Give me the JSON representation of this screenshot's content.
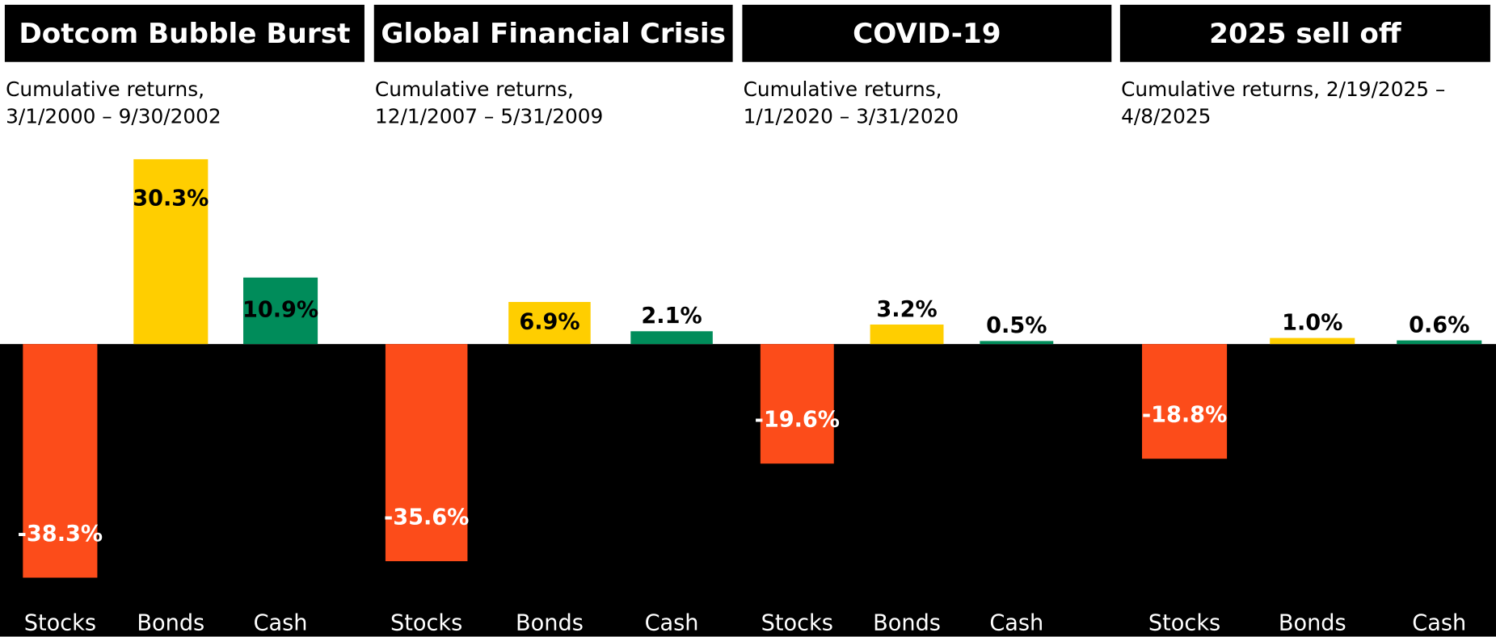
{
  "chart_data": [
    {
      "type": "bar",
      "title": "Dotcom Bubble Burst",
      "subtitle": "Cumulative returns, 3/1/2000 – 9/30/2002",
      "categories": [
        "Stocks",
        "Bonds",
        "Cash"
      ],
      "values": [
        -38.3,
        30.3,
        10.9
      ],
      "value_labels": [
        "-38.3%",
        "30.3%",
        "10.9%"
      ],
      "colors": [
        "#fc4c1a",
        "#ffce00",
        "#008c5a"
      ]
    },
    {
      "type": "bar",
      "title": "Global Financial Crisis",
      "subtitle": "Cumulative returns, 12/1/2007 – 5/31/2009",
      "categories": [
        "Stocks",
        "Bonds",
        "Cash"
      ],
      "values": [
        -35.6,
        6.9,
        2.1
      ],
      "value_labels": [
        "-35.6%",
        "6.9%",
        "2.1%"
      ],
      "colors": [
        "#fc4c1a",
        "#ffce00",
        "#008c5a"
      ]
    },
    {
      "type": "bar",
      "title": "COVID-19",
      "subtitle": "Cumulative returns, 1/1/2020 – 3/31/2020",
      "categories": [
        "Stocks",
        "Bonds",
        "Cash"
      ],
      "values": [
        -19.6,
        3.2,
        0.5
      ],
      "value_labels": [
        "-19.6%",
        "3.2%",
        "0.5%"
      ],
      "colors": [
        "#fc4c1a",
        "#ffce00",
        "#008c5a"
      ]
    },
    {
      "type": "bar",
      "title": "2025 sell off",
      "subtitle": "Cumulative returns, 2/19/2025 – 4/8/2025",
      "categories": [
        "Stocks",
        "Bonds",
        "Cash"
      ],
      "values": [
        -18.8,
        1.0,
        0.6
      ],
      "value_labels": [
        "-18.8%",
        "1.0%",
        "0.6%"
      ],
      "colors": [
        "#fc4c1a",
        "#ffce00",
        "#008c5a"
      ]
    }
  ]
}
